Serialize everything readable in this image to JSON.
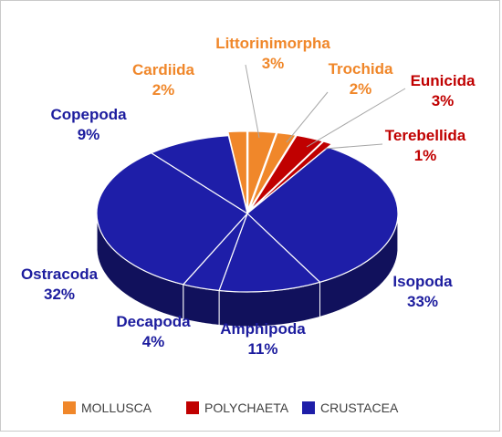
{
  "chart_data": {
    "type": "pie",
    "style": "3d-exploded",
    "slices": [
      {
        "label": "Littorinimorpha",
        "value": 3,
        "percent_label": "3%",
        "group": "MOLLUSCA"
      },
      {
        "label": "Trochida",
        "value": 2,
        "percent_label": "2%",
        "group": "MOLLUSCA"
      },
      {
        "label": "Eunicida",
        "value": 3,
        "percent_label": "3%",
        "group": "POLYCHAETA"
      },
      {
        "label": "Terebellida",
        "value": 1,
        "percent_label": "1%",
        "group": "POLYCHAETA"
      },
      {
        "label": "Isopoda",
        "value": 33,
        "percent_label": "33%",
        "group": "CRUSTACEA"
      },
      {
        "label": "Amphipoda",
        "value": 11,
        "percent_label": "11%",
        "group": "CRUSTACEA"
      },
      {
        "label": "Decapoda",
        "value": 4,
        "percent_label": "4%",
        "group": "CRUSTACEA"
      },
      {
        "label": "Ostracoda",
        "value": 32,
        "percent_label": "32%",
        "group": "CRUSTACEA"
      },
      {
        "label": "Copepoda",
        "value": 9,
        "percent_label": "9%",
        "group": "CRUSTACEA"
      },
      {
        "label": "Cardiida",
        "value": 2,
        "percent_label": "2%",
        "group": "MOLLUSCA"
      }
    ],
    "legend": {
      "placement": "bottom",
      "entries": [
        "MOLLUSCA",
        "POLYCHAETA",
        "CRUSTACEA"
      ]
    },
    "colors": {
      "MOLLUSCA": "#f0872a",
      "POLYCHAETA": "#c00000",
      "CRUSTACEA": "#1e1ea8"
    },
    "label_colors": {
      "MOLLUSCA": "#f0872a",
      "POLYCHAETA": "#c00000",
      "CRUSTACEA": "#1c1c9e"
    }
  }
}
